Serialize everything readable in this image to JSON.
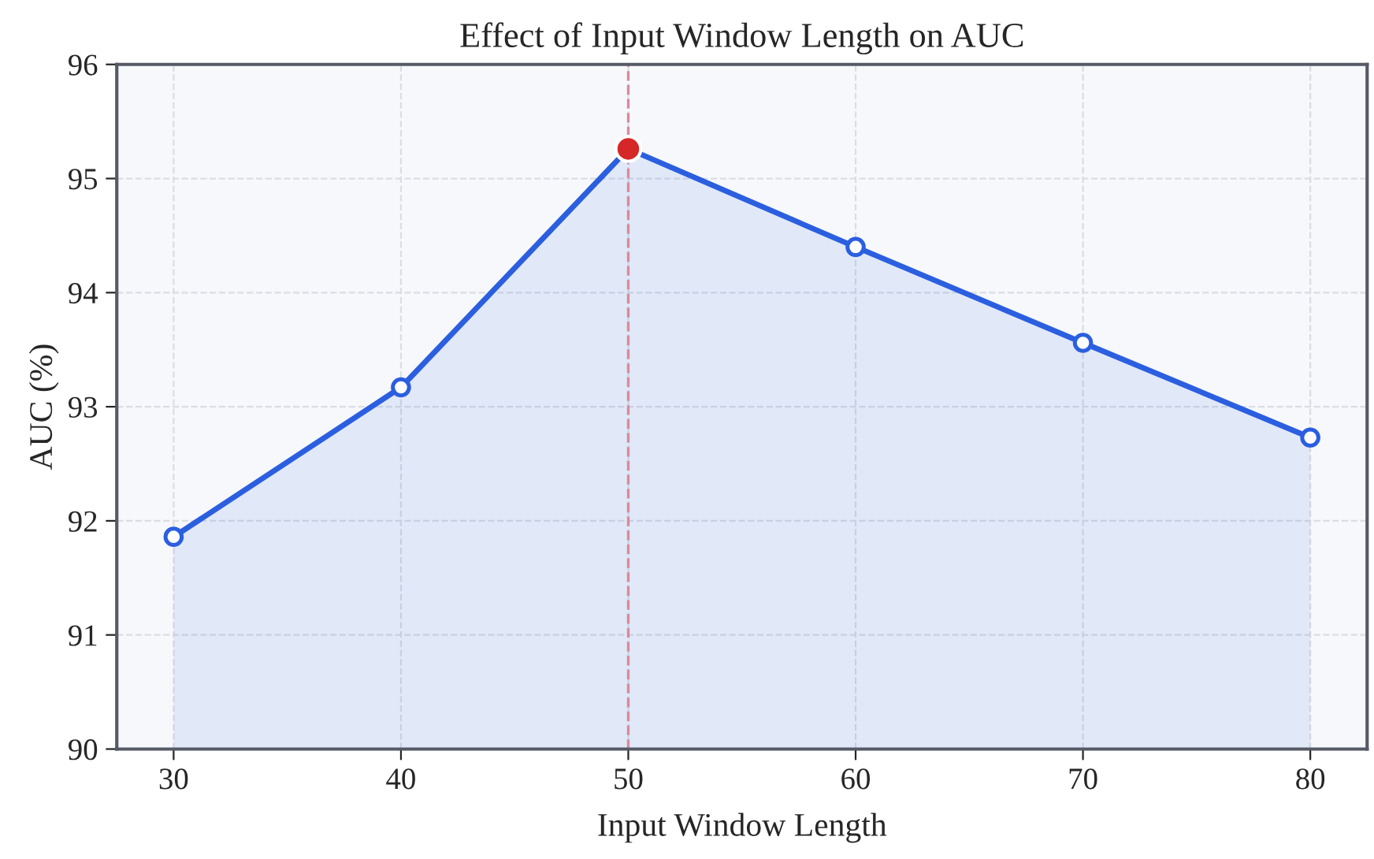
{
  "chart_data": {
    "type": "area",
    "title": "Effect of Input Window Length on AUC",
    "xlabel": "Input Window Length",
    "ylabel": "AUC (%)",
    "x": [
      30,
      40,
      50,
      60,
      70,
      80
    ],
    "series": [
      {
        "color": "#2b5fe0",
        "values": [
          91.86,
          93.17,
          95.26,
          94.4,
          93.56,
          92.73
        ],
        "marker": "circle"
      },
      {
        "type": "scatter",
        "color": "#d62728",
        "x": [
          50
        ],
        "values": [
          95.26
        ],
        "marker": "circle"
      }
    ],
    "xlim": [
      27.5,
      82.5
    ],
    "xticks": [
      30,
      40,
      50,
      60,
      70,
      80
    ],
    "ylim": [
      90,
      96
    ],
    "yticks": [
      90,
      91,
      92,
      93,
      94,
      95,
      96
    ],
    "ref_lines": [
      {
        "axis": "x",
        "value": 50,
        "label": null,
        "color": "#d98a9a",
        "line_style": "dashed"
      }
    ],
    "grid": true,
    "line_style": "solid"
  }
}
